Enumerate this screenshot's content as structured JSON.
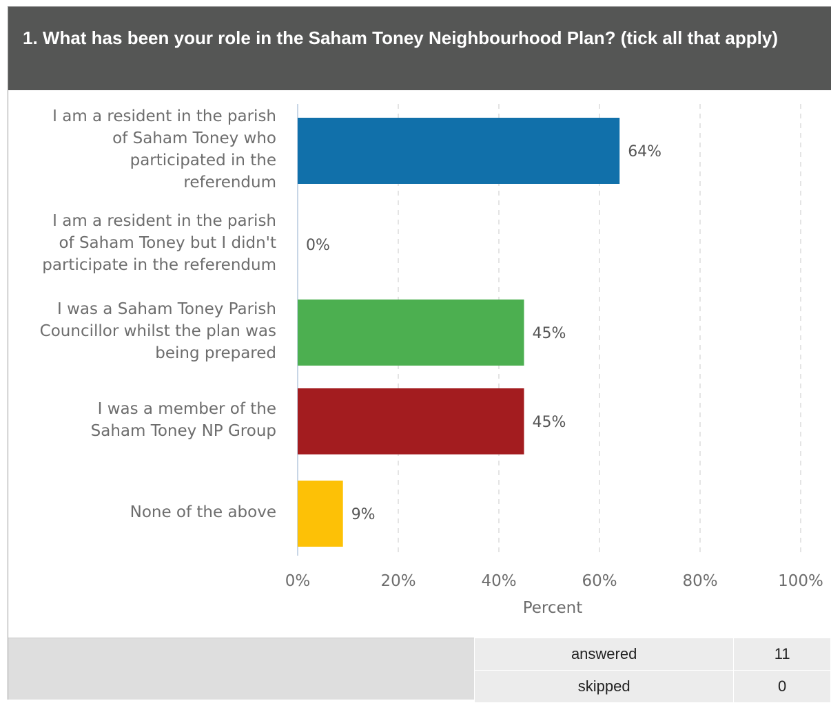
{
  "question": {
    "title": "1. What has been your role in the Saham Toney Neighbourhood Plan? (tick all that apply)"
  },
  "chart_data": {
    "type": "bar",
    "orientation": "horizontal",
    "categories": [
      "I am a resident in the parish\nof Saham Toney who\nparticipated in the\nreferendum",
      "I am a resident in the parish\nof Saham Toney but I didn't\nparticipate in the referendum",
      "I was a Saham Toney Parish\nCouncillor whilst the plan was\nbeing prepared",
      "I was a member of the\nSaham Toney NP Group",
      "None of the above"
    ],
    "values": [
      64,
      0,
      45,
      45,
      9
    ],
    "value_labels": [
      "64%",
      "0%",
      "45%",
      "45%",
      "9%"
    ],
    "colors": [
      "#1170aa",
      "#1170aa",
      "#4caf50",
      "#a31c1f",
      "#fdc106"
    ],
    "xlabel": "Percent",
    "xlim": [
      0,
      100
    ],
    "x_ticks": [
      0,
      20,
      40,
      60,
      80,
      100
    ],
    "x_tick_labels": [
      "0%",
      "20%",
      "40%",
      "60%",
      "80%",
      "100%"
    ],
    "grid": "vertical-dashed"
  },
  "summary": {
    "answered_label": "answered",
    "answered_value": "11",
    "skipped_label": "skipped",
    "skipped_value": "0"
  }
}
